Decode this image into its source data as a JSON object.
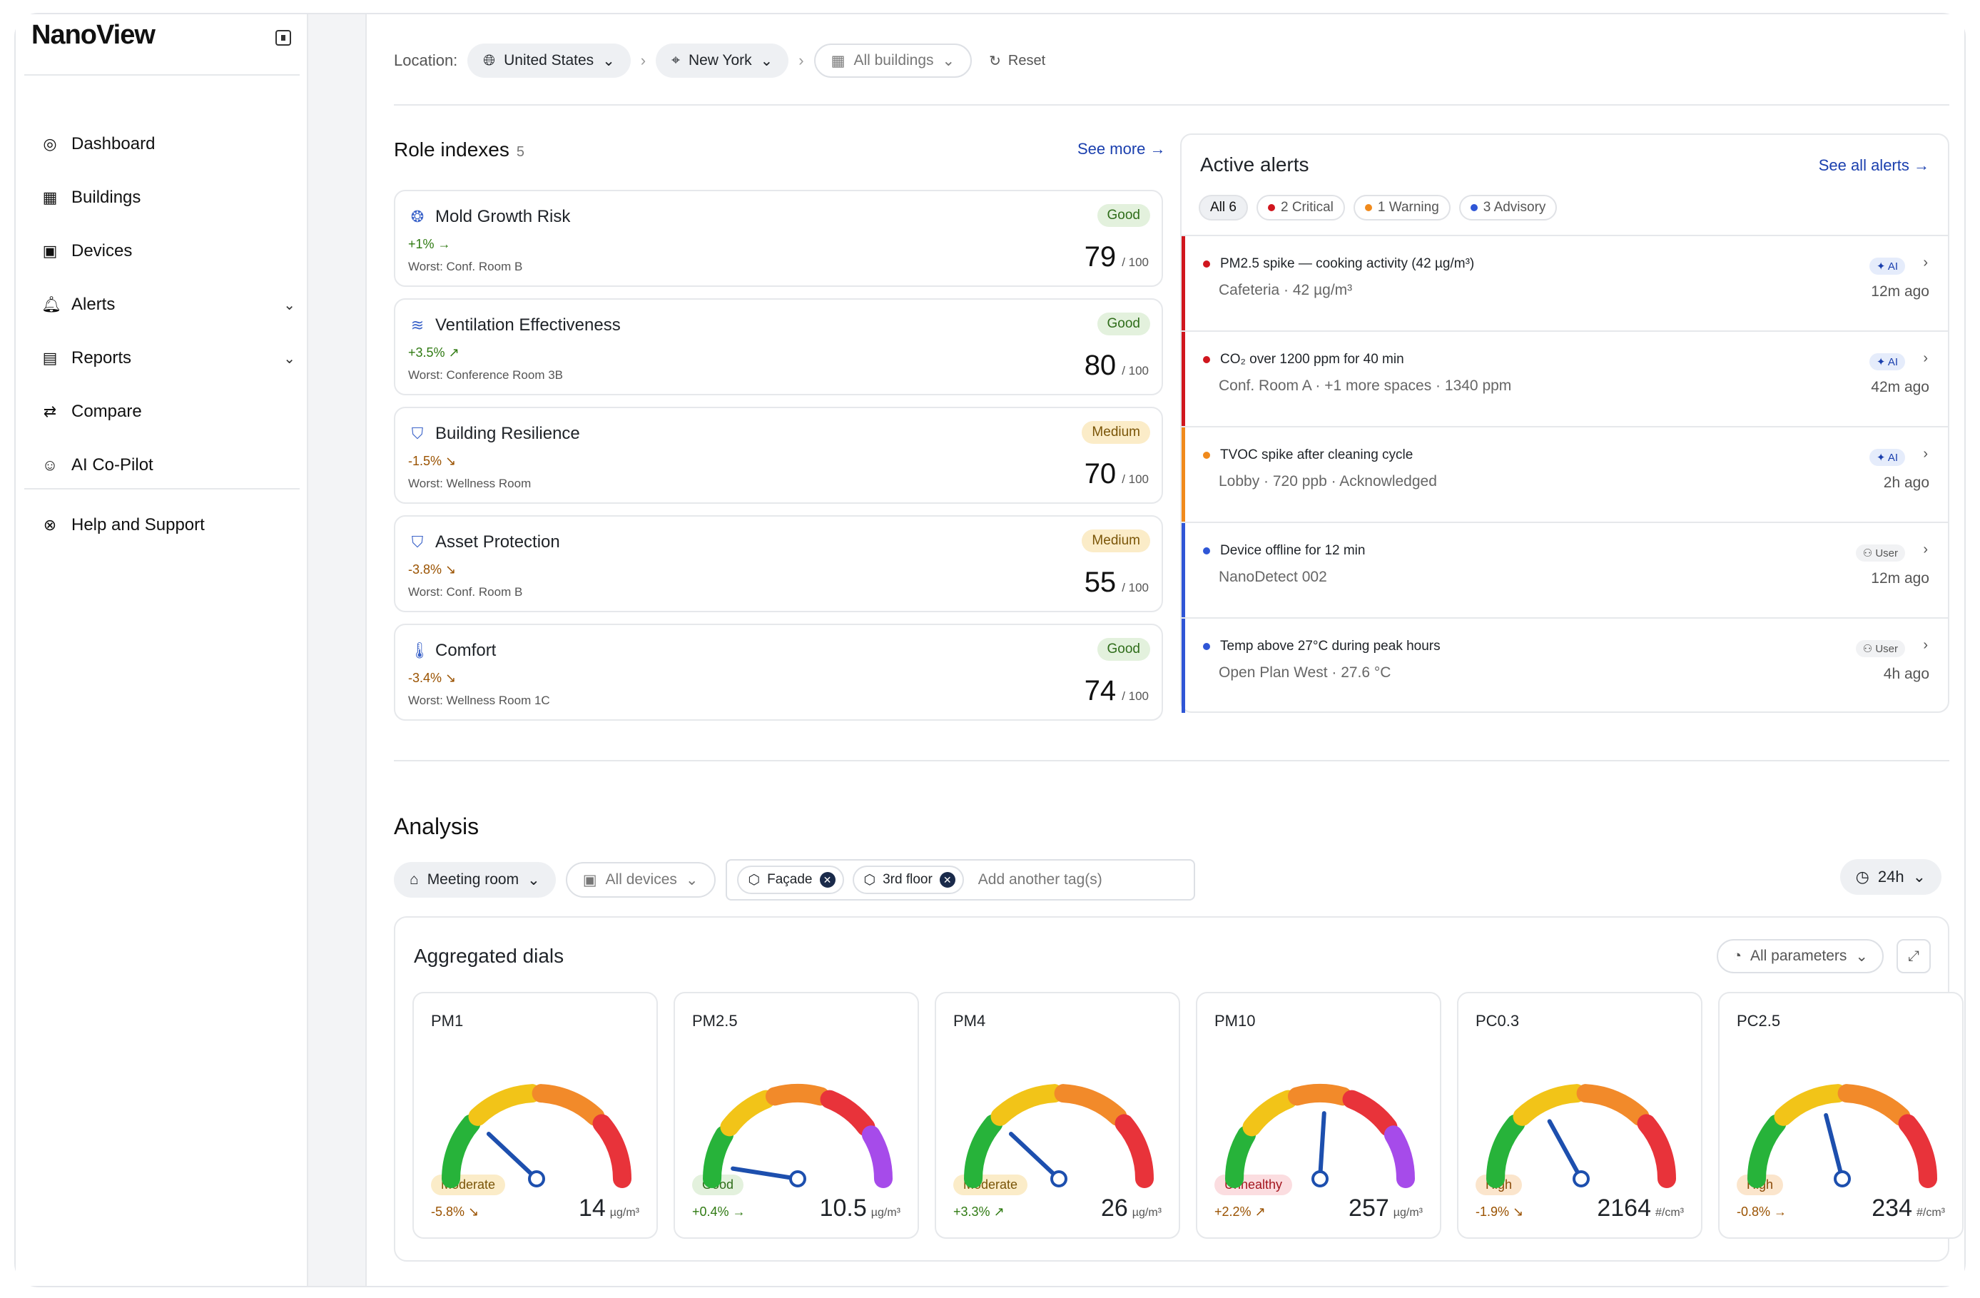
{
  "app": {
    "logo": "NanoView"
  },
  "nav": {
    "items": [
      {
        "label": "Dashboard",
        "icon": "dashboard-icon",
        "glyph": "◎"
      },
      {
        "label": "Buildings",
        "icon": "building-icon",
        "glyph": "▦"
      },
      {
        "label": "Devices",
        "icon": "device-icon",
        "glyph": "▣"
      },
      {
        "label": "Alerts",
        "icon": "bell-icon",
        "glyph": "🔔︎",
        "chevron": true
      },
      {
        "label": "Reports",
        "icon": "report-icon",
        "glyph": "▤",
        "chevron": true
      },
      {
        "label": "Compare",
        "icon": "compare-icon",
        "glyph": "⇄"
      },
      {
        "label": "AI Co-Pilot",
        "icon": "robot-icon",
        "glyph": "☺"
      }
    ],
    "help": {
      "label": "Help and Support",
      "glyph": "⊗"
    }
  },
  "location": {
    "label": "Location:",
    "country": "United States",
    "city": "New York",
    "building": "All buildings",
    "reset": "Reset"
  },
  "roles": {
    "title": "Role indexes",
    "count": "5",
    "see_more": "See more",
    "max": "/ 100",
    "items": [
      {
        "name": "Mold Growth Risk",
        "glyph": "❂",
        "trend": "+1%",
        "arrow": "→",
        "dir": "pos",
        "worst": "Worst: Conf. Room B",
        "badge": "Good",
        "badge_class": "good",
        "score": "79"
      },
      {
        "name": "Ventilation Effectiveness",
        "glyph": "≋",
        "trend": "+3.5%",
        "arrow": "↗",
        "dir": "pos",
        "worst": "Worst: Conference Room 3B",
        "badge": "Good",
        "badge_class": "good",
        "score": "80"
      },
      {
        "name": "Building Resilience",
        "glyph": "⛉",
        "trend": "-1.5%",
        "arrow": "↘",
        "dir": "neg",
        "worst": "Worst: Wellness Room",
        "badge": "Medium",
        "badge_class": "medium",
        "score": "70"
      },
      {
        "name": "Asset Protection",
        "glyph": "⛉",
        "trend": "-3.8%",
        "arrow": "↘",
        "dir": "neg",
        "worst": "Worst: Conf. Room B",
        "badge": "Medium",
        "badge_class": "medium",
        "score": "55"
      },
      {
        "name": "Comfort",
        "glyph": "🌡︎",
        "trend": "-3.4%",
        "arrow": "↘",
        "dir": "neg",
        "worst": "Worst: Wellness Room 1C",
        "badge": "Good",
        "badge_class": "good",
        "score": "74"
      }
    ]
  },
  "alerts": {
    "title": "Active alerts",
    "see_all": "See all alerts",
    "filters": [
      {
        "label": "All 6",
        "active": true,
        "color": ""
      },
      {
        "label": "2 Critical",
        "color": "#d0161e"
      },
      {
        "label": "1 Warning",
        "color": "#f08a1c"
      },
      {
        "label": "3 Advisory",
        "color": "#2f56d6"
      }
    ],
    "items": [
      {
        "title": "PM2.5 spike — cooking activity (42 µg/m³)",
        "sub": "Cafeteria · 42 µg/m³",
        "tag": "AI",
        "tag_class": "ai",
        "time": "12m ago",
        "color": "#d0161e"
      },
      {
        "title": "CO₂ over 1200 ppm for 40 min",
        "sub": "Conf. Room A · +1 more spaces · 1340 ppm",
        "tag": "AI",
        "tag_class": "ai",
        "time": "42m ago",
        "color": "#d0161e"
      },
      {
        "title": "TVOC spike after cleaning cycle",
        "sub": "Lobby · 720 ppb · Acknowledged",
        "tag": "AI",
        "tag_class": "ai",
        "time": "2h ago",
        "color": "#f08a1c"
      },
      {
        "title": "Device offline for 12 min",
        "sub": "NanoDetect 002",
        "tag": "User",
        "tag_class": "user",
        "time": "12m ago",
        "color": "#2f56d6"
      },
      {
        "title": "Temp above 27°C during peak hours",
        "sub": "Open Plan West · 27.6 °C",
        "tag": "User",
        "tag_class": "user",
        "time": "4h ago",
        "color": "#2f56d6"
      }
    ]
  },
  "analysis": {
    "title": "Analysis",
    "space": "Meeting room",
    "devices": "All devices",
    "tags": [
      "Façade",
      "3rd floor"
    ],
    "tag_placeholder": "Add another tag(s)",
    "range": "24h"
  },
  "dials": {
    "title": "Aggregated dials",
    "all_params": "All parameters",
    "colors": {
      "green": "#27b33a",
      "yellow": "#f2c418",
      "orange": "#f28a2a",
      "red": "#e8333a",
      "purple": "#a64bea",
      "needle": "#1d4fae"
    },
    "items": [
      {
        "name": "PM1",
        "fraction": 0.24,
        "badge": "Moderate",
        "badge_class": "medium",
        "trend": "-5.8%",
        "arrow": "↘",
        "dir": "neg",
        "value": "14",
        "unit": "µg/m³",
        "scale": [
          "green",
          "yellow",
          "orange",
          "red"
        ]
      },
      {
        "name": "PM2.5",
        "fraction": 0.05,
        "badge": "Good",
        "badge_class": "good",
        "trend": "+0.4%",
        "arrow": "→",
        "dir": "pos",
        "value": "10.5",
        "unit": "µg/m³",
        "scale": [
          "green",
          "yellow",
          "orange",
          "red",
          "purple"
        ]
      },
      {
        "name": "PM4",
        "fraction": 0.24,
        "badge": "Moderate",
        "badge_class": "medium",
        "trend": "+3.3%",
        "arrow": "↗",
        "dir": "pos",
        "value": "26",
        "unit": "µg/m³",
        "scale": [
          "green",
          "yellow",
          "orange",
          "red"
        ]
      },
      {
        "name": "PM10",
        "fraction": 0.52,
        "badge": "Unhealthy",
        "badge_class": "unhealthy",
        "trend": "+2.2%",
        "arrow": "↗",
        "dir": "neg",
        "value": "257",
        "unit": "µg/m³",
        "scale": [
          "green",
          "yellow",
          "orange",
          "red",
          "purple"
        ]
      },
      {
        "name": "PC0.3",
        "fraction": 0.34,
        "badge": "High",
        "badge_class": "high",
        "trend": "-1.9%",
        "arrow": "↘",
        "dir": "neg",
        "value": "2164",
        "unit": "#/cm³",
        "scale": [
          "green",
          "yellow",
          "orange",
          "red"
        ]
      },
      {
        "name": "PC2.5",
        "fraction": 0.42,
        "badge": "High",
        "badge_class": "high",
        "trend": "-0.8%",
        "arrow": "→",
        "dir": "neg",
        "value": "234",
        "unit": "#/cm³",
        "scale": [
          "green",
          "yellow",
          "orange",
          "red"
        ]
      }
    ]
  }
}
